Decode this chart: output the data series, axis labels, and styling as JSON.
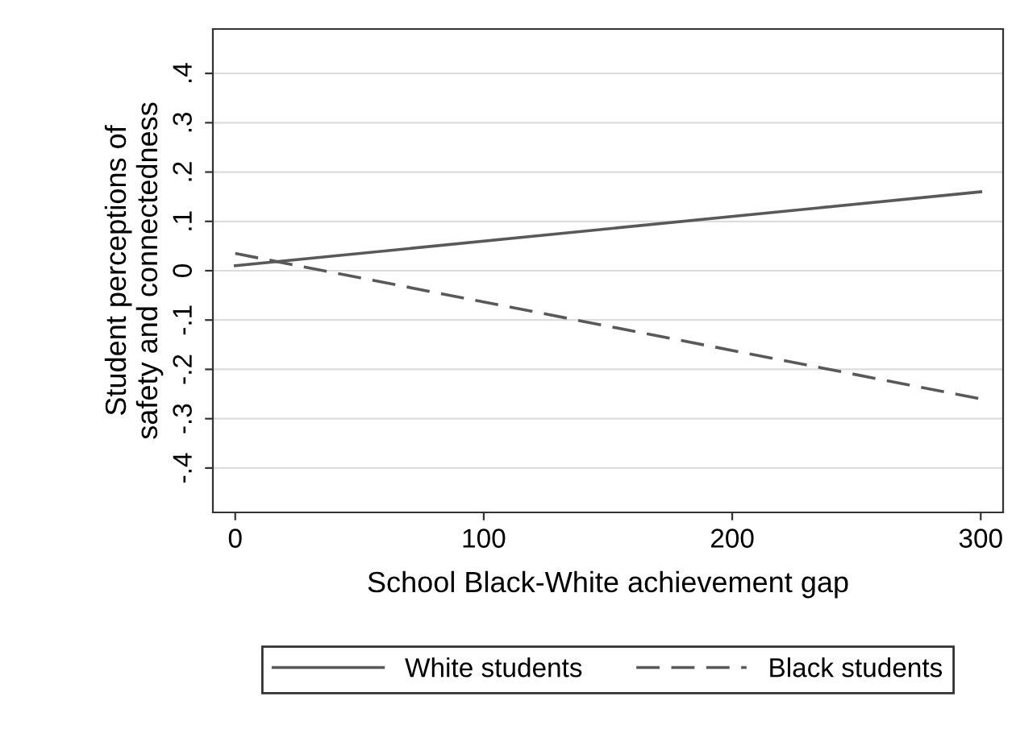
{
  "chart_data": {
    "type": "line",
    "xlabel": "School Black-White achievement gap",
    "ylabel": "Student perceptions of\nsafety and connectedness",
    "series": [
      {
        "name": "White students",
        "color": "#595959",
        "values": [
          0.01,
          0.16
        ],
        "line_style": "solid"
      },
      {
        "name": "Black students",
        "color": "#595959",
        "values": [
          0.035,
          -0.26
        ],
        "line_style": "dashed"
      }
    ],
    "x": [
      0,
      300
    ],
    "xlim": [
      -9,
      309
    ],
    "ylim": [
      -0.49,
      0.49
    ],
    "xticks": [
      0,
      100,
      200,
      300
    ],
    "yticks": [
      {
        "value": 0.4,
        "label": ".4"
      },
      {
        "value": 0.3,
        "label": ".3"
      },
      {
        "value": 0.2,
        "label": ".2"
      },
      {
        "value": 0.1,
        "label": ".1"
      },
      0,
      {
        "value": -0.1,
        "label": "-.1"
      },
      {
        "value": -0.2,
        "label": "-.2"
      },
      {
        "value": -0.3,
        "label": "-.3"
      },
      {
        "value": -0.4,
        "label": "-.4"
      }
    ],
    "grid": "y",
    "legend": "bottom",
    "marker": "none"
  }
}
